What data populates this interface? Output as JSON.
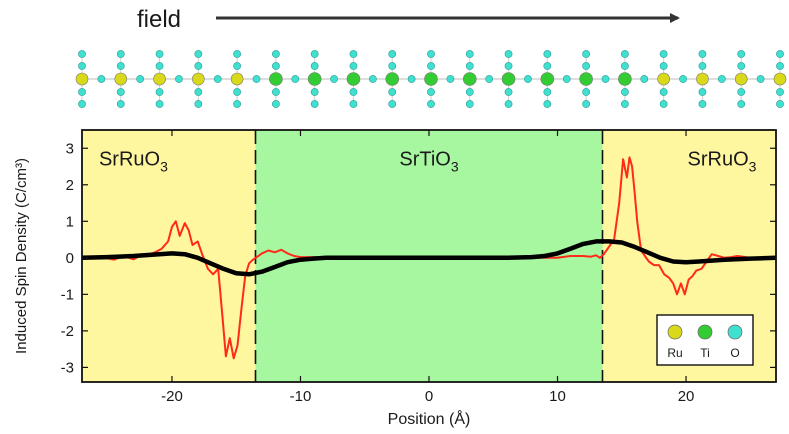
{
  "header": {
    "field_label": "field"
  },
  "atom_chain": {
    "sequence": [
      "Ru",
      "Ru",
      "Ru",
      "Ru",
      "Ru",
      "Ti",
      "Ti",
      "Ti",
      "Ti",
      "Ti",
      "Ti",
      "Ti",
      "Ti",
      "Ti",
      "Ti",
      "Ru",
      "Ru",
      "Ru",
      "Ru"
    ],
    "colors": {
      "Ru": "#d9d91a",
      "Ti": "#33cc33",
      "O": "#40e0d0"
    }
  },
  "chart_data": {
    "type": "line",
    "title": "",
    "xlabel": "Position (Å)",
    "ylabel": "Induced Spin Density (C/cm³)",
    "xlim": [
      -27,
      27
    ],
    "ylim": [
      -3.4,
      3.5
    ],
    "xticks": [
      -20,
      -10,
      0,
      10,
      20
    ],
    "xtick_labels": [
      "-20",
      "-10",
      "0",
      "10",
      "20"
    ],
    "yticks": [
      3,
      2,
      1,
      0,
      -1,
      -2,
      -3
    ],
    "ytick_labels": [
      "3",
      "2",
      "1",
      "0",
      "-1",
      "-2",
      "-3"
    ],
    "grid": false,
    "regions": [
      {
        "name": "left-electrode",
        "x0": -27,
        "x1": -13.5,
        "color": "#fff6a0"
      },
      {
        "name": "dielectric",
        "x0": -13.5,
        "x1": 13.5,
        "color": "#a6f7a0"
      },
      {
        "name": "right-electrode",
        "x0": 13.5,
        "x1": 27,
        "color": "#fff6a0"
      }
    ],
    "interfaces": [
      -13.5,
      13.5
    ],
    "region_labels": [
      {
        "base": "SrRuO",
        "sub": "3",
        "x": -23,
        "y": 2.75
      },
      {
        "base": "SrTiO",
        "sub": "3",
        "x": 0,
        "y": 2.75
      },
      {
        "base": "SrRuO",
        "sub": "3",
        "x": 22.8,
        "y": 2.75
      }
    ],
    "series": [
      {
        "name": "raw",
        "color": "#ff2a1a",
        "x": [
          -27,
          -25.5,
          -24.5,
          -23.8,
          -23,
          -22.5,
          -22,
          -21.3,
          -20.8,
          -20.3,
          -20,
          -19.7,
          -19.4,
          -19,
          -18.7,
          -18.4,
          -18,
          -17.6,
          -17.2,
          -16.8,
          -16.4,
          -16.1,
          -15.8,
          -15.5,
          -15.2,
          -14.9,
          -14.6,
          -14.3,
          -14,
          -13.7,
          -13.4,
          -13,
          -12.5,
          -12,
          -11.5,
          -11,
          -10.5,
          -10,
          -9,
          -8,
          -6,
          -4,
          -2,
          0,
          2,
          4,
          6,
          8,
          10,
          11,
          12,
          12.6,
          13,
          13.3,
          13.6,
          14,
          14.4,
          14.8,
          15.1,
          15.4,
          15.6,
          15.8,
          16,
          16.2,
          16.5,
          16.8,
          17.1,
          17.5,
          17.9,
          18.3,
          18.7,
          19,
          19.3,
          19.6,
          19.9,
          20.2,
          20.5,
          20.8,
          21.2,
          21.6,
          22,
          22.5,
          23,
          23.5,
          24,
          25,
          27
        ],
        "y": [
          0,
          0.02,
          -0.05,
          0.05,
          -0.04,
          0.05,
          0.08,
          0.15,
          0.25,
          0.45,
          0.85,
          1.0,
          0.6,
          0.95,
          0.75,
          0.35,
          0.45,
          0.05,
          -0.3,
          -0.45,
          -0.3,
          -1.5,
          -2.7,
          -2.2,
          -2.75,
          -2.4,
          -1.4,
          -0.5,
          -0.15,
          -0.05,
          0.02,
          0.12,
          0.2,
          0.15,
          0.22,
          0.12,
          0.05,
          0.02,
          0.02,
          0.01,
          0.0,
          0.0,
          0.0,
          0.0,
          0.0,
          0.0,
          0.0,
          0.0,
          0.0,
          0.05,
          0.05,
          0.03,
          0.07,
          0.0,
          0.1,
          0.3,
          0.5,
          1.5,
          2.7,
          2.2,
          2.75,
          2.5,
          1.8,
          1.0,
          0.2,
          0.05,
          -0.1,
          -0.2,
          -0.2,
          -0.45,
          -0.55,
          -0.7,
          -1.0,
          -0.7,
          -1.0,
          -0.6,
          -0.5,
          -0.35,
          -0.3,
          -0.1,
          0.1,
          0.05,
          0.0,
          0.02,
          0.05,
          0.0,
          0.0
        ]
      },
      {
        "name": "smoothed",
        "color": "#000000",
        "x": [
          -27,
          -25,
          -23,
          -21,
          -20,
          -19,
          -18,
          -17,
          -16,
          -15,
          -14,
          -13,
          -12,
          -11,
          -10,
          -9,
          -8,
          -6,
          -4,
          -2,
          0,
          2,
          4,
          6,
          8,
          9,
          10,
          11,
          12,
          13,
          14,
          15,
          16,
          17,
          18,
          19,
          20,
          21,
          23,
          25,
          27
        ],
        "y": [
          0,
          0.02,
          0.05,
          0.1,
          0.12,
          0.1,
          0.0,
          -0.15,
          -0.3,
          -0.42,
          -0.45,
          -0.38,
          -0.25,
          -0.12,
          -0.05,
          -0.02,
          0,
          0,
          0,
          0,
          0,
          0,
          0,
          0,
          0.02,
          0.05,
          0.12,
          0.25,
          0.38,
          0.45,
          0.45,
          0.42,
          0.3,
          0.15,
          0.0,
          -0.1,
          -0.12,
          -0.1,
          -0.05,
          -0.02,
          0
        ]
      }
    ],
    "legend": {
      "placement": "bottom-right",
      "entries": [
        {
          "label": "Ru",
          "color": "#d9d91a"
        },
        {
          "label": "Ti",
          "color": "#33cc33"
        },
        {
          "label": "O",
          "color": "#40e0d0"
        }
      ]
    }
  }
}
